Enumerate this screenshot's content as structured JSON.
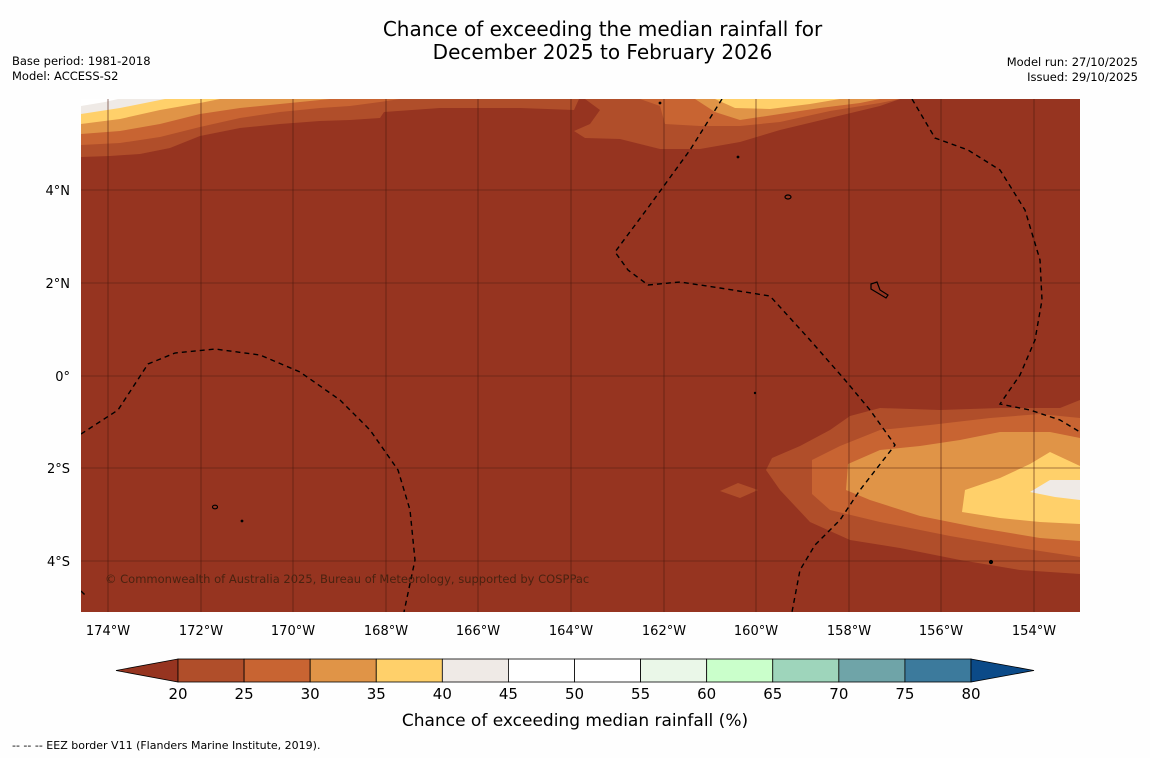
{
  "header": {
    "title_line1": "Chance of exceeding the median rainfall for",
    "title_line2": "December 2025 to February 2026",
    "base_period": "Base period: 1981-2018",
    "model": "Model: ACCESS-S2",
    "model_run": "Model run: 27/10/2025",
    "issued": "Issued: 29/10/2025"
  },
  "map": {
    "background_color": "#963420",
    "lat_labels": [
      "4°N",
      "2°N",
      "0°",
      "2°S",
      "4°S"
    ],
    "lon_labels": [
      "174°W",
      "172°W",
      "170°W",
      "168°W",
      "166°W",
      "164°W",
      "162°W",
      "160°W",
      "158°W",
      "156°W",
      "154°W"
    ],
    "copyright": "© Commonwealth of Australia 2025, Bureau of Meteorology, supported by COSPPac"
  },
  "colorbar": {
    "ticks": [
      "20",
      "25",
      "30",
      "35",
      "40",
      "45",
      "50",
      "55",
      "60",
      "65",
      "70",
      "75",
      "80"
    ],
    "colors": [
      "#963420",
      "#b04e2a",
      "#c86432",
      "#e09447",
      "#ffd06a",
      "#efeae6",
      "#ffffff",
      "#ffffff",
      "#eaf7e8",
      "#caffcb",
      "#9ed5bb",
      "#6fa4a8",
      "#3c7a9c",
      "#0b4a88"
    ],
    "label": "Chance of exceeding median rainfall (%)"
  },
  "footer": {
    "text": "-- -- -- EEZ border V11 (Flanders Marine Institute, 2019)."
  }
}
